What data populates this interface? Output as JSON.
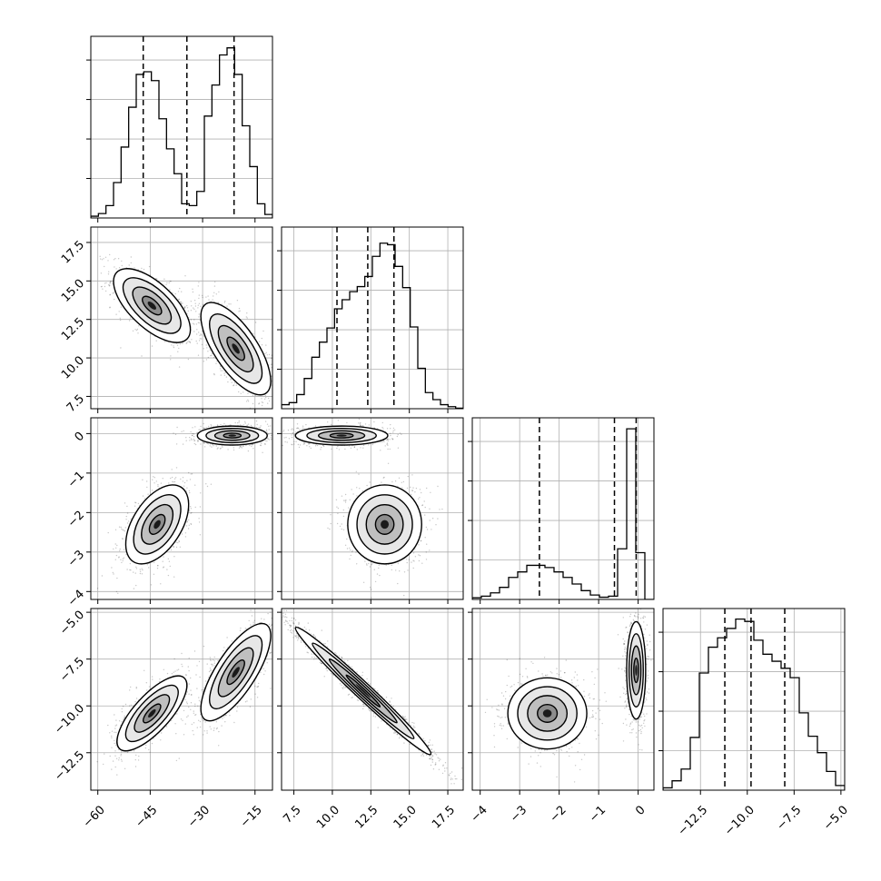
{
  "chart_data": {
    "type": "corner",
    "variables": 4,
    "panels": [
      {
        "kind": "histogram",
        "row": 0,
        "col": 0,
        "range": [
          -62,
          -10
        ],
        "counts": [
          2,
          5,
          14,
          40,
          80,
          125,
          162,
          165,
          155,
          112,
          78,
          50,
          16,
          14,
          30,
          115,
          150,
          184,
          192,
          162,
          104,
          58,
          16,
          4
        ],
        "ymax": 205,
        "quantiles": [
          -47,
          -34.5,
          -21
        ],
        "ticks": [],
        "tick_labels": []
      },
      {
        "kind": "histogram",
        "row": 1,
        "col": 1,
        "range": [
          6.7,
          18.5
        ],
        "counts": [
          8,
          12,
          28,
          60,
          102,
          132,
          160,
          198,
          216,
          232,
          242,
          262,
          302,
          328,
          325,
          282,
          240,
          162,
          80,
          32,
          18,
          8,
          4,
          1
        ],
        "ymax": 360,
        "quantiles": [
          10.3,
          12.3,
          14
        ],
        "ticks": [
          7.5,
          10.0,
          12.5,
          15.0,
          17.5
        ],
        "tick_labels": [
          "7.5",
          "10.0",
          "12.5",
          "15.0",
          "17.5"
        ]
      },
      {
        "kind": "histogram",
        "row": 2,
        "col": 2,
        "range": [
          -4.2,
          0.4
        ],
        "counts": [
          3,
          6,
          12,
          22,
          40,
          50,
          62,
          62,
          58,
          50,
          40,
          28,
          16,
          8,
          4,
          6,
          92,
          310,
          85,
          0
        ],
        "ymax": 330,
        "quantiles": [
          -2.5,
          -0.6,
          -0.05
        ],
        "ticks": [
          -4,
          -3,
          -2,
          -1,
          0
        ],
        "tick_labels": [
          "−4",
          "−3",
          "−2",
          "−1",
          "0"
        ]
      },
      {
        "kind": "histogram",
        "row": 3,
        "col": 3,
        "range": [
          -14.5,
          -4.8
        ],
        "counts": [
          2,
          8,
          18,
          45,
          100,
          122,
          130,
          138,
          146,
          144,
          128,
          116,
          110,
          104,
          96,
          66,
          46,
          32,
          16,
          4
        ],
        "ymax": 155,
        "quantiles": [
          -11.2,
          -9.8,
          -8.0
        ],
        "ticks": [
          -12.5,
          -10.0,
          -7.5,
          -5.0
        ],
        "tick_labels": [
          "−12.5",
          "−10.0",
          "−7.5",
          "−5.0"
        ]
      },
      {
        "kind": "scatter2d",
        "row": 1,
        "col": 0,
        "xrange": [
          -62,
          -10
        ],
        "yrange": [
          6.7,
          18.5
        ],
        "modes": [
          {
            "center": [
              -44.5,
              13.4
            ],
            "sx": 5.5,
            "sy": 1.2,
            "rho": -0.65,
            "n": 1700
          },
          {
            "center": [
              -20.5,
              10.6
            ],
            "sx": 5.0,
            "sy": 1.5,
            "rho": -0.7,
            "n": 1900
          }
        ]
      },
      {
        "kind": "scatter2d",
        "row": 2,
        "col": 0,
        "xrange": [
          -62,
          -10
        ],
        "yrange": [
          -4.2,
          0.4
        ],
        "modes": [
          {
            "center": [
              -21.5,
              -0.05
            ],
            "sx": 5.0,
            "sy": 0.12,
            "rho": 0.0,
            "n": 1900
          },
          {
            "center": [
              -43.0,
              -2.3
            ],
            "sx": 4.5,
            "sy": 0.5,
            "rho": 0.5,
            "n": 1700
          }
        ]
      },
      {
        "kind": "scatter2d",
        "row": 2,
        "col": 1,
        "xrange": [
          6.7,
          18.5
        ],
        "yrange": [
          -4.2,
          0.4
        ],
        "modes": [
          {
            "center": [
              10.6,
              -0.05
            ],
            "sx": 1.5,
            "sy": 0.12,
            "rho": 0.0,
            "n": 1900
          },
          {
            "center": [
              13.4,
              -2.3
            ],
            "sx": 1.2,
            "sy": 0.5,
            "rho": 0.0,
            "n": 1700
          }
        ]
      },
      {
        "kind": "scatter2d",
        "row": 3,
        "col": 0,
        "xrange": [
          -62,
          -10
        ],
        "yrange": [
          -14.5,
          -4.8
        ],
        "modes": [
          {
            "center": [
              -44.5,
              -10.4
            ],
            "sx": 5.0,
            "sy": 1.0,
            "rho": 0.75,
            "n": 1700
          },
          {
            "center": [
              -20.5,
              -8.2
            ],
            "sx": 5.0,
            "sy": 1.3,
            "rho": 0.75,
            "n": 1900
          }
        ]
      },
      {
        "kind": "scatter2d",
        "row": 3,
        "col": 1,
        "xrange": [
          6.7,
          18.5
        ],
        "yrange": [
          -14.5,
          -4.8
        ],
        "modes": [
          {
            "center": [
              12.0,
              -9.2
            ],
            "sx": 2.2,
            "sy": 1.7,
            "rho": -0.985,
            "n": 3600
          }
        ]
      },
      {
        "kind": "scatter2d",
        "row": 3,
        "col": 2,
        "xrange": [
          -4.2,
          0.4
        ],
        "yrange": [
          -14.5,
          -4.8
        ],
        "modes": [
          {
            "center": [
              -2.3,
              -10.4
            ],
            "sx": 0.5,
            "sy": 0.95,
            "rho": 0.0,
            "n": 1700
          },
          {
            "center": [
              -0.05,
              -8.1
            ],
            "sx": 0.12,
            "sy": 1.3,
            "rho": 0.0,
            "n": 1900
          }
        ]
      }
    ],
    "axes": {
      "x_ticks": [
        {
          "col": 0,
          "values": [
            -60,
            -45,
            -30,
            -15
          ],
          "labels": [
            "−60",
            "−45",
            "−30",
            "−15"
          ]
        },
        {
          "col": 1,
          "values": [
            7.5,
            10.0,
            12.5,
            15.0,
            17.5
          ],
          "labels": [
            "7.5",
            "10.0",
            "12.5",
            "15.0",
            "17.5"
          ]
        },
        {
          "col": 2,
          "values": [
            -4,
            -3,
            -2,
            -1,
            0
          ],
          "labels": [
            "−4",
            "−3",
            "−2",
            "−1",
            "0"
          ]
        },
        {
          "col": 3,
          "values": [
            -12.5,
            -10.0,
            -7.5,
            -5.0
          ],
          "labels": [
            "−12.5",
            "−10.0",
            "−7.5",
            "−5.0"
          ]
        }
      ],
      "y_ticks": [
        {
          "row": 1,
          "values": [
            7.5,
            10.0,
            12.5,
            15.0,
            17.5
          ],
          "labels": [
            "7.5",
            "10.0",
            "12.5",
            "15.0",
            "17.5"
          ]
        },
        {
          "row": 2,
          "values": [
            -4,
            -3,
            -2,
            -1,
            0
          ],
          "labels": [
            "−4",
            "−3",
            "−2",
            "−1",
            "0"
          ]
        },
        {
          "row": 3,
          "values": [
            -12.5,
            -10.0,
            -7.5,
            -5.0
          ],
          "labels": [
            "−12.5",
            "−10.0",
            "−7.5",
            "−5.0"
          ]
        }
      ]
    },
    "grid": true,
    "colors": {
      "line": "#000000",
      "grid": "#b0b0b0",
      "scatter": "#000000",
      "background": "#ffffff"
    }
  }
}
